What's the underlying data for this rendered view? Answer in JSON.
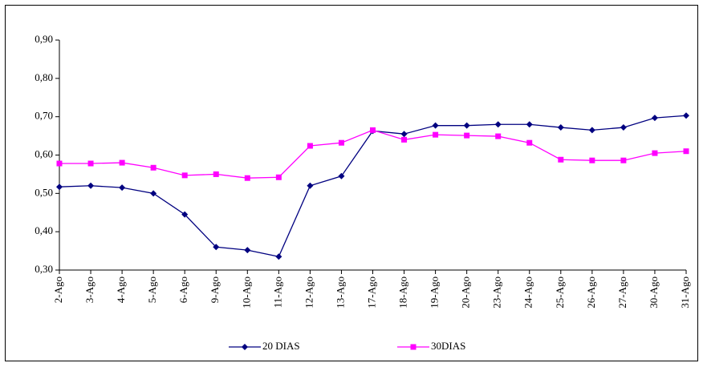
{
  "chart_data": {
    "type": "line",
    "categories": [
      "2-Ago",
      "3-Ago",
      "4-Ago",
      "5-Ago",
      "6-Ago",
      "9-Ago",
      "10-Ago",
      "11-Ago",
      "12-Ago",
      "13-Ago",
      "17-Ago",
      "18-Ago",
      "19-Ago",
      "20-Ago",
      "23-Ago",
      "24-Ago",
      "25-Ago",
      "26-Ago",
      "27-Ago",
      "30-Ago",
      "31-Ago"
    ],
    "series": [
      {
        "name": "20 DIAS",
        "color": "#000080",
        "marker": "diamond",
        "values": [
          0.517,
          0.52,
          0.515,
          0.5,
          0.445,
          0.36,
          0.352,
          0.335,
          0.52,
          0.545,
          0.663,
          0.655,
          0.677,
          0.677,
          0.68,
          0.68,
          0.672,
          0.665,
          0.672,
          0.697,
          0.703
        ]
      },
      {
        "name": "30DIAS",
        "color": "#ff00ff",
        "marker": "square",
        "values": [
          0.578,
          0.578,
          0.58,
          0.567,
          0.547,
          0.55,
          0.54,
          0.542,
          0.624,
          0.632,
          0.665,
          0.64,
          0.653,
          0.651,
          0.649,
          0.632,
          0.588,
          0.586,
          0.586,
          0.605,
          0.61
        ]
      }
    ],
    "ylim": [
      0.3,
      0.9
    ],
    "yticks": [
      {
        "value": 0.3,
        "label": "0,30"
      },
      {
        "value": 0.4,
        "label": "0,40"
      },
      {
        "value": 0.5,
        "label": "0,50"
      },
      {
        "value": 0.6,
        "label": "0,60"
      },
      {
        "value": 0.7,
        "label": "0,70"
      },
      {
        "value": 0.8,
        "label": "0,80"
      },
      {
        "value": 0.9,
        "label": "0,90"
      }
    ],
    "grid": false,
    "legend": "bottom"
  }
}
